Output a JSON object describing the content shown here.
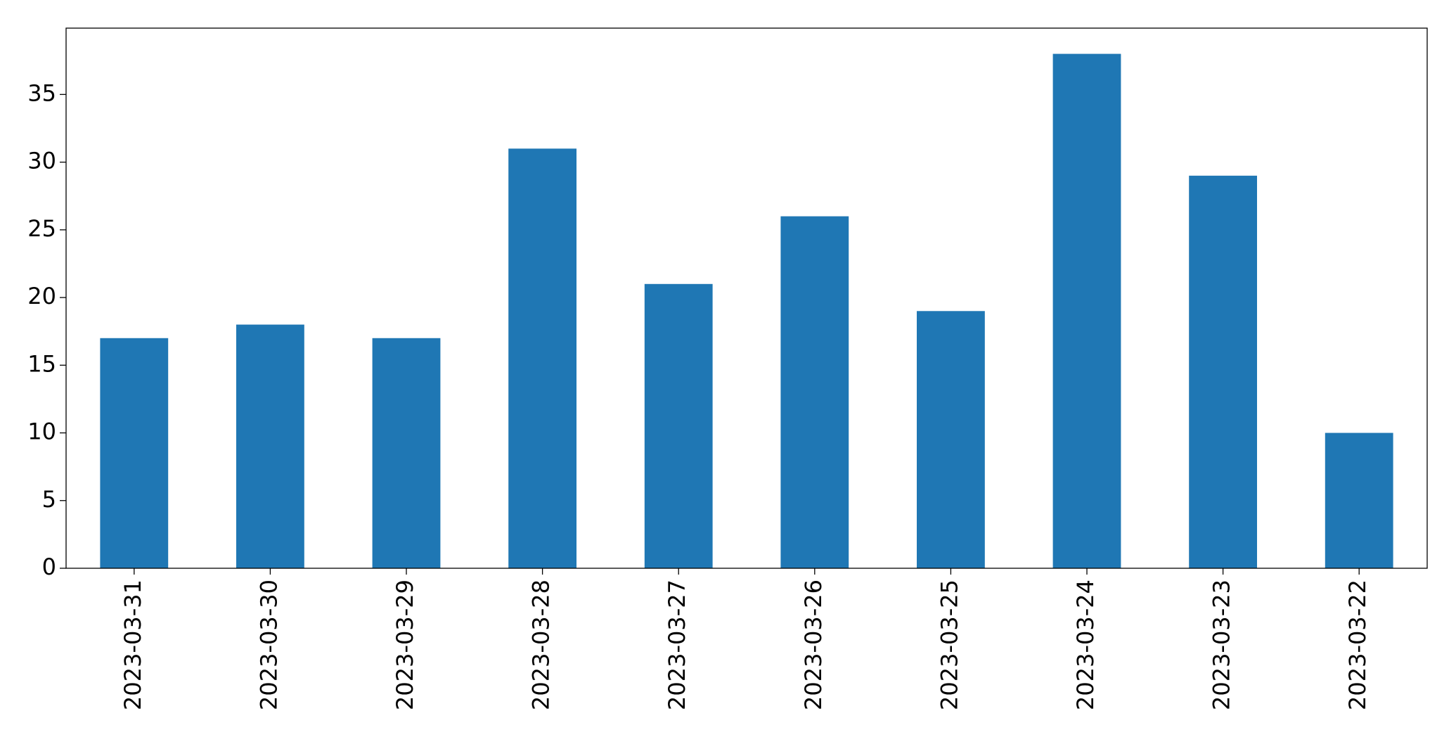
{
  "chart_data": {
    "type": "bar",
    "categories": [
      "2023-03-31",
      "2023-03-30",
      "2023-03-29",
      "2023-03-28",
      "2023-03-27",
      "2023-03-26",
      "2023-03-25",
      "2023-03-24",
      "2023-03-23",
      "2023-03-22"
    ],
    "values": [
      17,
      18,
      17,
      31,
      21,
      26,
      19,
      38,
      29,
      10
    ],
    "color": "#1f77b4",
    "ylim": [
      0,
      39.9
    ],
    "yticks": [
      0,
      5,
      10,
      15,
      20,
      25,
      30,
      35
    ],
    "grid": false
  }
}
